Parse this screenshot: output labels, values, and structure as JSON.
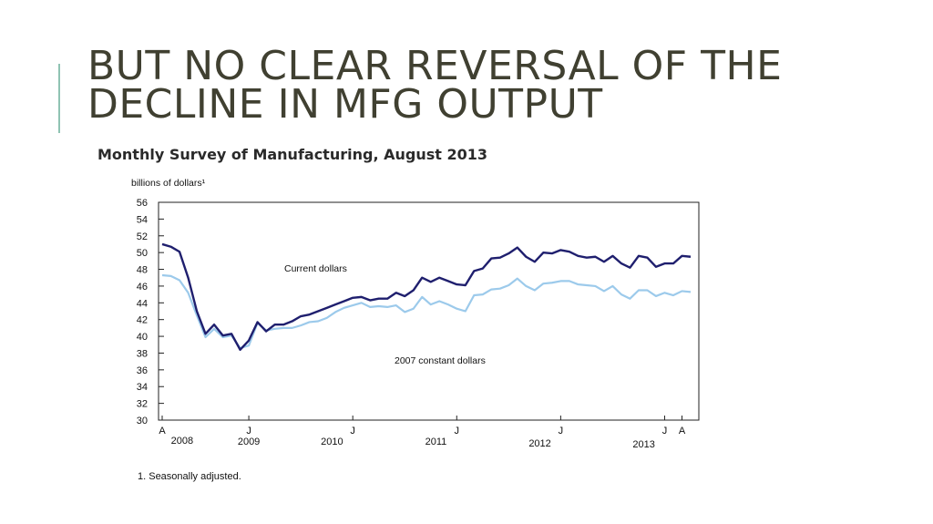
{
  "slide": {
    "title_line1": "BUT NO CLEAR REVERSAL OF THE",
    "title_line2": "DECLINE IN MFG OUTPUT",
    "accent_color": "#8fc3b3",
    "title_color": "#404031"
  },
  "chart_data": {
    "type": "line",
    "title": "Monthly Survey of Manufacturing, August 2013",
    "ylabel": "billions of dollars¹",
    "ylim": [
      30,
      56
    ],
    "yticks": [
      30,
      32,
      34,
      36,
      38,
      40,
      42,
      44,
      46,
      48,
      50,
      52,
      54,
      56
    ],
    "grid": false,
    "x_tick_labels": [
      "A",
      "J",
      "J",
      "J",
      "J",
      "J",
      "A"
    ],
    "year_labels": [
      "2008",
      "2009",
      "2010",
      "2011",
      "2012",
      "2013"
    ],
    "footnote": "1. Seasonally adjusted.",
    "x_start": "2008-08",
    "x_end": "2013-08",
    "series": [
      {
        "name": "Current dollars",
        "color": "#1f1f6e",
        "values": [
          51.0,
          50.7,
          50.1,
          47.0,
          43.0,
          40.3,
          41.4,
          40.1,
          40.3,
          38.4,
          39.5,
          41.7,
          40.6,
          41.4,
          41.4,
          41.8,
          42.4,
          42.6,
          43.0,
          43.4,
          43.8,
          44.2,
          44.6,
          44.7,
          44.3,
          44.5,
          44.5,
          45.2,
          44.8,
          45.5,
          47.0,
          46.5,
          47.0,
          46.6,
          46.2,
          46.1,
          47.8,
          48.1,
          49.3,
          49.4,
          49.9,
          50.6,
          49.5,
          48.9,
          50.0,
          49.9,
          50.3,
          50.1,
          49.6,
          49.4,
          49.5,
          48.9,
          49.6,
          48.7,
          48.2,
          49.6,
          49.4,
          48.3,
          48.7,
          48.7,
          49.6,
          49.5
        ]
      },
      {
        "name": "2007 constant dollars",
        "color": "#9ccaeb",
        "values": [
          47.3,
          47.2,
          46.7,
          45.2,
          42.5,
          39.9,
          40.9,
          39.9,
          40.1,
          38.6,
          38.9,
          41.6,
          40.7,
          40.9,
          41.0,
          41.0,
          41.3,
          41.7,
          41.8,
          42.2,
          42.9,
          43.4,
          43.7,
          44.0,
          43.5,
          43.6,
          43.5,
          43.7,
          42.9,
          43.3,
          44.7,
          43.8,
          44.2,
          43.8,
          43.3,
          43.0,
          44.9,
          45.0,
          45.6,
          45.7,
          46.1,
          46.9,
          46.0,
          45.5,
          46.3,
          46.4,
          46.6,
          46.6,
          46.2,
          46.1,
          46.0,
          45.4,
          46.0,
          45.0,
          44.5,
          45.5,
          45.5,
          44.8,
          45.2,
          44.9,
          45.4,
          45.3
        ]
      }
    ]
  }
}
